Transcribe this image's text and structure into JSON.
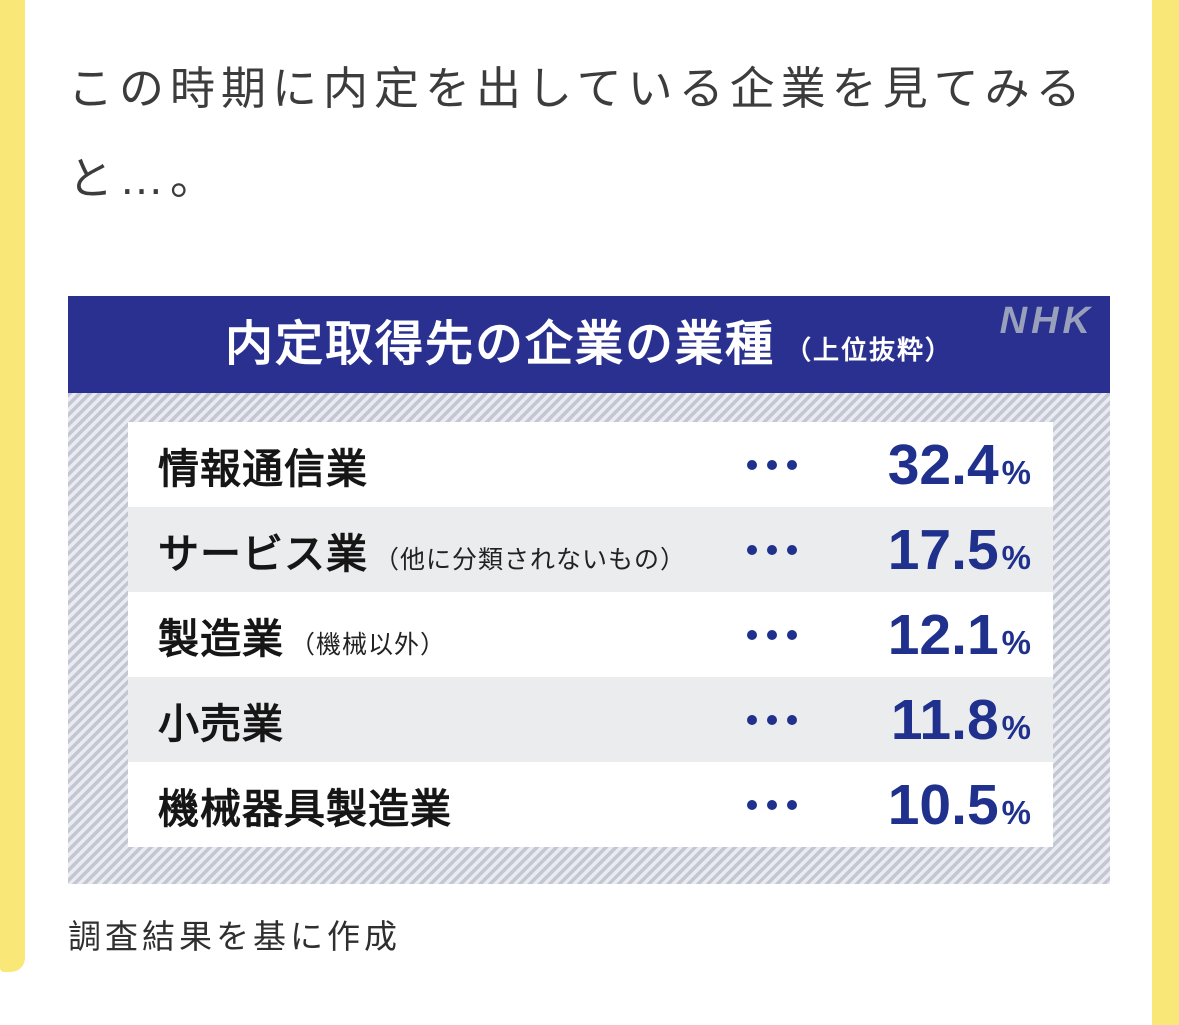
{
  "page": {
    "accent_yellow": "#f9e878",
    "intro_text": "この時期に内定を出している企業を見てみると…。",
    "caption": "調査結果を基に作成"
  },
  "chart": {
    "title": "内定取得先の企業の業種",
    "title_note": "（上位抜粋）",
    "logo": "NHK",
    "header_bg": "#29308f",
    "value_color": "#1f308d",
    "separator": "…",
    "unit": "%"
  },
  "rows": [
    {
      "label": "情報通信業",
      "sublabel": "",
      "value": "32.4"
    },
    {
      "label": "サービス業",
      "sublabel": "（他に分類されないもの）",
      "value": "17.5"
    },
    {
      "label": "製造業",
      "sublabel": "（機械以外）",
      "value": "12.1"
    },
    {
      "label": "小売業",
      "sublabel": "",
      "value": "11.8"
    },
    {
      "label": "機械器具製造業",
      "sublabel": "",
      "value": "10.5"
    }
  ],
  "chart_data": {
    "type": "table",
    "title": "内定取得先の企業の業種（上位抜粋）",
    "categories": [
      "情報通信業",
      "サービス業（他に分類されないもの）",
      "製造業（機械以外）",
      "小売業",
      "機械器具製造業"
    ],
    "values": [
      32.4,
      17.5,
      12.1,
      11.8,
      10.5
    ],
    "unit": "%",
    "source_note": "調査結果を基に作成",
    "legend_position": "none",
    "grid": false
  }
}
